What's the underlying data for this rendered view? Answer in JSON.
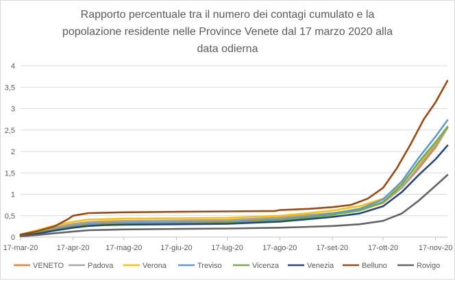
{
  "chart_data": {
    "type": "line",
    "title_lines": [
      "Rapporto percentuale tra il numero dei contagi cumulato e la",
      "popolazione residente nelle Province Venete dal 17 marzo 2020 alla",
      "data odierna"
    ],
    "xlabel": "",
    "ylabel": "",
    "ylim": [
      0,
      4
    ],
    "xlim_days": [
      0,
      252
    ],
    "yticks": [
      "0",
      "0,5",
      "1",
      "1,5",
      "2",
      "2,5",
      "3",
      "3,5",
      "4"
    ],
    "ytick_values": [
      0,
      0.5,
      1,
      1.5,
      2,
      2.5,
      3,
      3.5,
      4
    ],
    "xticks": [
      "17-mar-20",
      "17-apr-20",
      "17-mag-20",
      "17-giu-20",
      "17-lug-20",
      "17-ago-20",
      "17-set-20",
      "17-ott-20",
      "17-nov-20"
    ],
    "xtick_days": [
      0,
      31,
      61,
      92,
      122,
      153,
      184,
      214,
      245
    ],
    "grid": true,
    "legend_position": "bottom",
    "series": [
      {
        "name": "VENETO",
        "color": "#ed7d31",
        "points": [
          [
            0,
            0.05
          ],
          [
            10,
            0.12
          ],
          [
            20,
            0.22
          ],
          [
            31,
            0.3
          ],
          [
            40,
            0.34
          ],
          [
            50,
            0.36
          ],
          [
            61,
            0.37
          ],
          [
            92,
            0.38
          ],
          [
            122,
            0.39
          ],
          [
            153,
            0.44
          ],
          [
            170,
            0.5
          ],
          [
            184,
            0.54
          ],
          [
            200,
            0.62
          ],
          [
            214,
            0.8
          ],
          [
            225,
            1.15
          ],
          [
            235,
            1.6
          ],
          [
            245,
            2.1
          ],
          [
            252,
            2.55
          ]
        ]
      },
      {
        "name": "Padova",
        "color": "#a5a5a5",
        "points": [
          [
            0,
            0.05
          ],
          [
            10,
            0.13
          ],
          [
            20,
            0.23
          ],
          [
            31,
            0.31
          ],
          [
            40,
            0.35
          ],
          [
            50,
            0.37
          ],
          [
            61,
            0.38
          ],
          [
            92,
            0.39
          ],
          [
            122,
            0.4
          ],
          [
            153,
            0.46
          ],
          [
            170,
            0.52
          ],
          [
            184,
            0.56
          ],
          [
            200,
            0.64
          ],
          [
            214,
            0.82
          ],
          [
            225,
            1.15
          ],
          [
            235,
            1.65
          ],
          [
            245,
            2.15
          ],
          [
            252,
            2.55
          ]
        ]
      },
      {
        "name": "Verona",
        "color": "#ffc000",
        "points": [
          [
            0,
            0.06
          ],
          [
            10,
            0.16
          ],
          [
            20,
            0.27
          ],
          [
            31,
            0.36
          ],
          [
            40,
            0.41
          ],
          [
            50,
            0.42
          ],
          [
            61,
            0.43
          ],
          [
            92,
            0.44
          ],
          [
            122,
            0.45
          ],
          [
            153,
            0.5
          ],
          [
            170,
            0.56
          ],
          [
            184,
            0.62
          ],
          [
            200,
            0.72
          ],
          [
            214,
            0.9
          ],
          [
            225,
            1.25
          ],
          [
            235,
            1.72
          ],
          [
            245,
            2.2
          ],
          [
            252,
            2.58
          ]
        ]
      },
      {
        "name": "Treviso",
        "color": "#5b9bd5",
        "points": [
          [
            0,
            0.04
          ],
          [
            10,
            0.1
          ],
          [
            20,
            0.18
          ],
          [
            31,
            0.26
          ],
          [
            40,
            0.3
          ],
          [
            50,
            0.32
          ],
          [
            61,
            0.33
          ],
          [
            92,
            0.34
          ],
          [
            122,
            0.35
          ],
          [
            153,
            0.41
          ],
          [
            170,
            0.48
          ],
          [
            184,
            0.55
          ],
          [
            200,
            0.66
          ],
          [
            214,
            0.88
          ],
          [
            225,
            1.3
          ],
          [
            235,
            1.85
          ],
          [
            245,
            2.35
          ],
          [
            252,
            2.73
          ]
        ]
      },
      {
        "name": "Vicenza",
        "color": "#70ad47",
        "points": [
          [
            0,
            0.04
          ],
          [
            10,
            0.1
          ],
          [
            20,
            0.17
          ],
          [
            31,
            0.24
          ],
          [
            40,
            0.28
          ],
          [
            50,
            0.3
          ],
          [
            61,
            0.31
          ],
          [
            92,
            0.32
          ],
          [
            122,
            0.33
          ],
          [
            153,
            0.39
          ],
          [
            170,
            0.46
          ],
          [
            184,
            0.52
          ],
          [
            200,
            0.62
          ],
          [
            214,
            0.82
          ],
          [
            225,
            1.22
          ],
          [
            235,
            1.75
          ],
          [
            245,
            2.22
          ],
          [
            252,
            2.57
          ]
        ]
      },
      {
        "name": "Venezia",
        "color": "#264478",
        "points": [
          [
            0,
            0.03
          ],
          [
            10,
            0.08
          ],
          [
            20,
            0.15
          ],
          [
            31,
            0.22
          ],
          [
            40,
            0.26
          ],
          [
            50,
            0.28
          ],
          [
            61,
            0.29
          ],
          [
            92,
            0.3
          ],
          [
            122,
            0.31
          ],
          [
            153,
            0.36
          ],
          [
            170,
            0.42
          ],
          [
            184,
            0.47
          ],
          [
            200,
            0.55
          ],
          [
            214,
            0.72
          ],
          [
            225,
            1.05
          ],
          [
            235,
            1.45
          ],
          [
            245,
            1.82
          ],
          [
            252,
            2.14
          ]
        ]
      },
      {
        "name": "Belluno",
        "color": "#9e480e",
        "points": [
          [
            0,
            0.06
          ],
          [
            10,
            0.14
          ],
          [
            20,
            0.25
          ],
          [
            28,
            0.42
          ],
          [
            31,
            0.5
          ],
          [
            40,
            0.56
          ],
          [
            50,
            0.57
          ],
          [
            61,
            0.58
          ],
          [
            92,
            0.59
          ],
          [
            122,
            0.6
          ],
          [
            150,
            0.61
          ],
          [
            153,
            0.63
          ],
          [
            170,
            0.66
          ],
          [
            184,
            0.7
          ],
          [
            195,
            0.75
          ],
          [
            205,
            0.9
          ],
          [
            214,
            1.15
          ],
          [
            222,
            1.6
          ],
          [
            230,
            2.15
          ],
          [
            238,
            2.75
          ],
          [
            245,
            3.15
          ],
          [
            252,
            3.65
          ]
        ]
      },
      {
        "name": "Rovigo",
        "color": "#636363",
        "points": [
          [
            0,
            0.02
          ],
          [
            10,
            0.05
          ],
          [
            20,
            0.09
          ],
          [
            31,
            0.13
          ],
          [
            40,
            0.16
          ],
          [
            50,
            0.17
          ],
          [
            61,
            0.18
          ],
          [
            92,
            0.19
          ],
          [
            122,
            0.2
          ],
          [
            153,
            0.22
          ],
          [
            170,
            0.24
          ],
          [
            184,
            0.26
          ],
          [
            200,
            0.3
          ],
          [
            214,
            0.38
          ],
          [
            225,
            0.55
          ],
          [
            235,
            0.85
          ],
          [
            245,
            1.2
          ],
          [
            252,
            1.45
          ]
        ]
      }
    ]
  }
}
